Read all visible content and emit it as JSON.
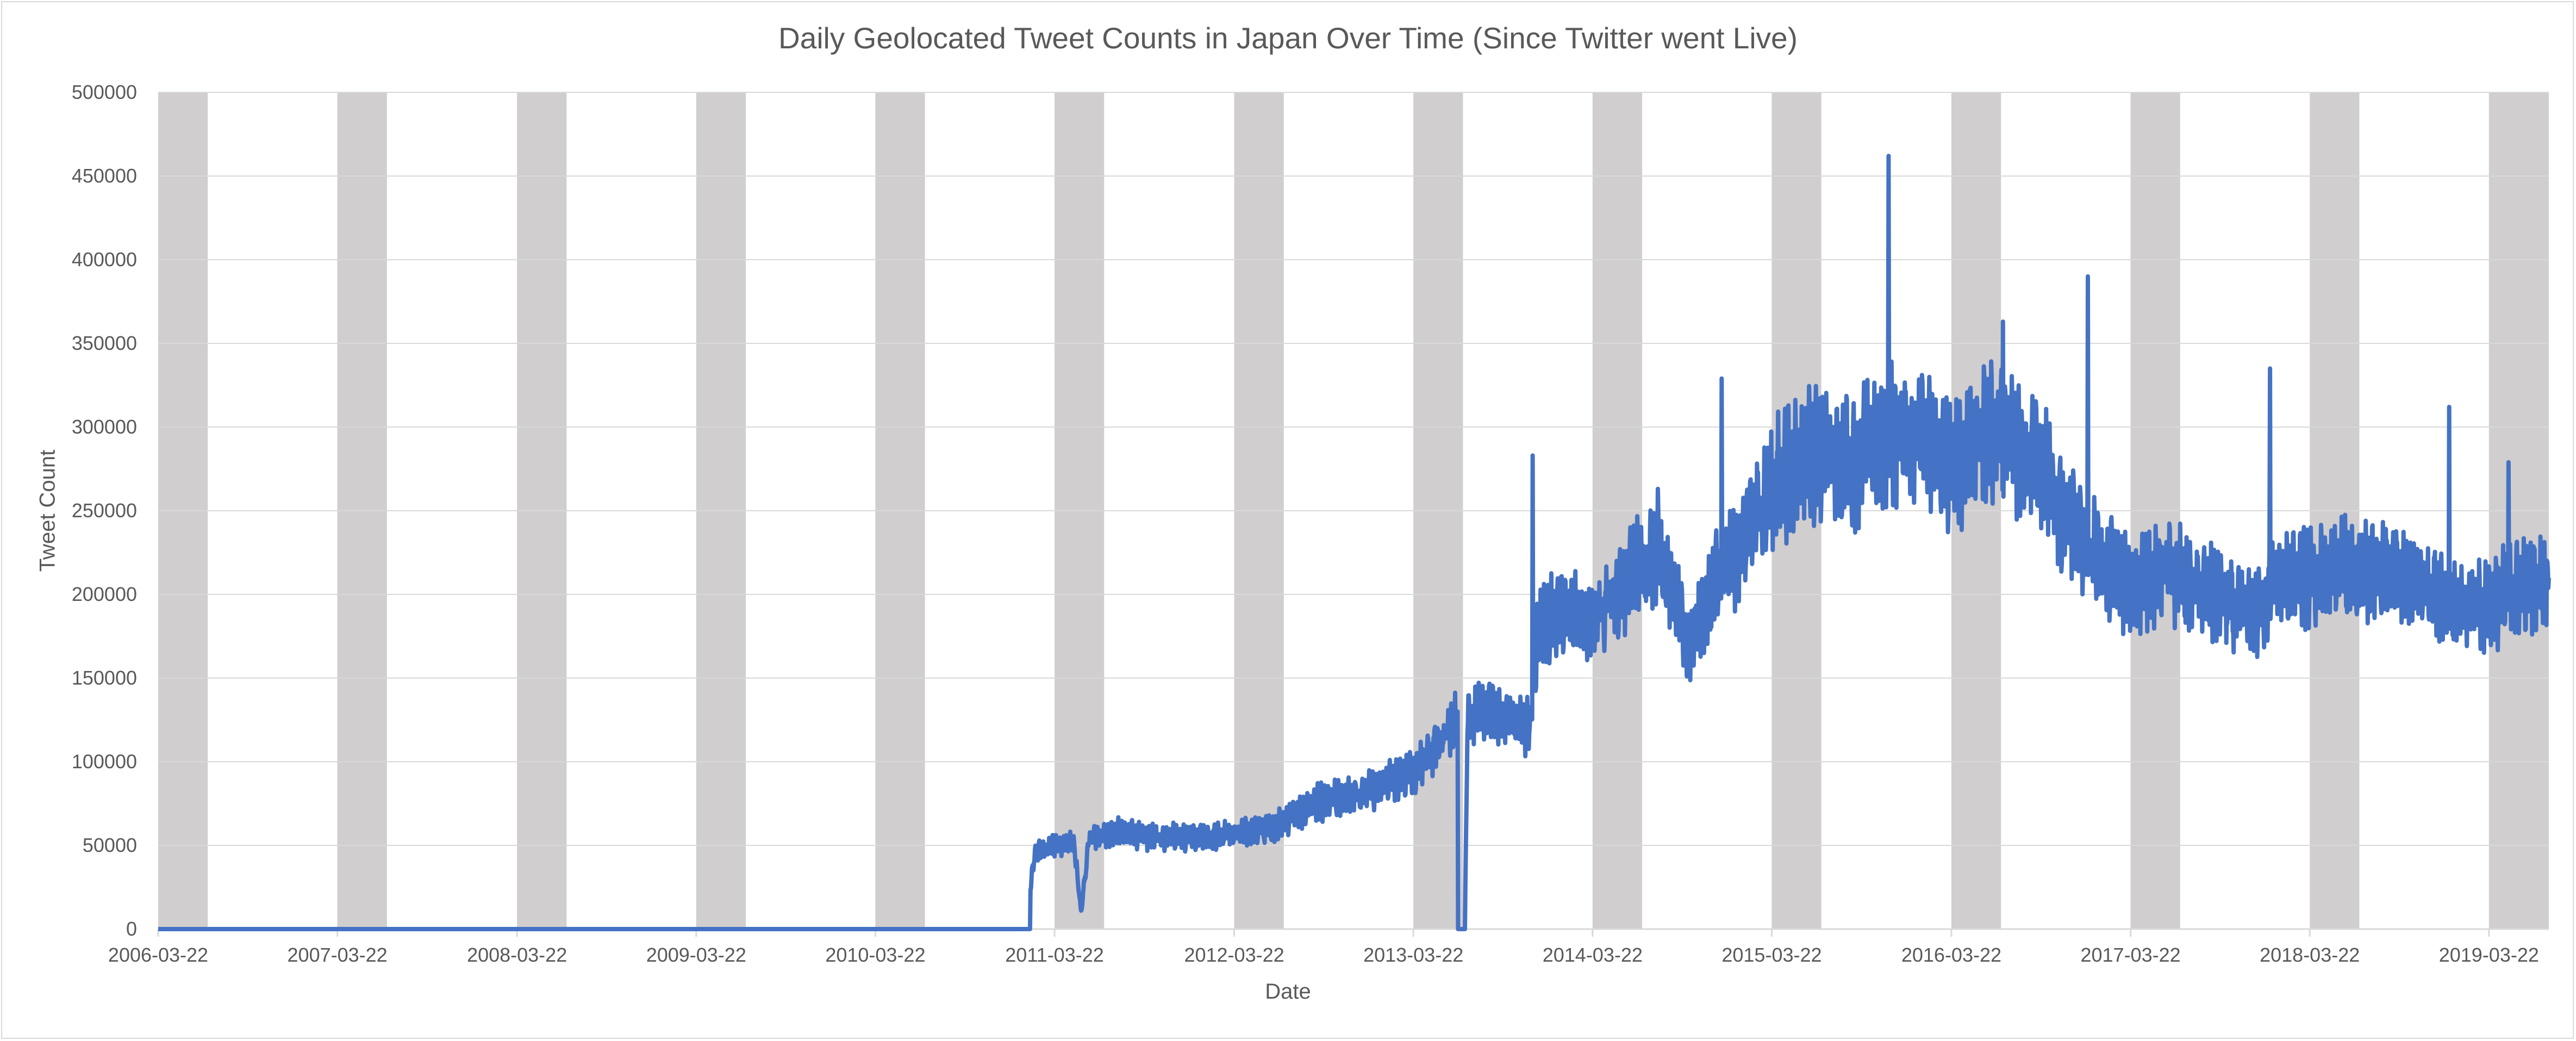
{
  "chart_data": {
    "type": "line",
    "title": "Daily Geolocated Tweet Counts in Japan Over Time (Since Twitter went Live)",
    "xlabel": "Date",
    "ylabel": "Tweet Count",
    "x_type": "date",
    "xlim": [
      "2006-03-22",
      "2019-07-22"
    ],
    "ylim": [
      0,
      500000
    ],
    "grid": "horizontal",
    "legend": "none",
    "x_ticks": [
      "2006-03-22",
      "2007-03-22",
      "2008-03-22",
      "2009-03-22",
      "2010-03-22",
      "2011-03-22",
      "2012-03-22",
      "2013-03-22",
      "2014-03-22",
      "2015-03-22",
      "2016-03-22",
      "2017-03-22",
      "2018-03-22",
      "2019-03-22"
    ],
    "y_ticks": [
      0,
      50000,
      100000,
      150000,
      200000,
      250000,
      300000,
      350000,
      400000,
      450000,
      500000
    ],
    "y_tick_labels": [
      "0",
      "50000",
      "100000",
      "150000",
      "200000",
      "250000",
      "300000",
      "350000",
      "400000",
      "450000",
      "500000"
    ],
    "shaded_bands": [
      [
        "2006-03-22",
        "2006-07-01"
      ],
      [
        "2007-03-22",
        "2007-07-01"
      ],
      [
        "2008-03-22",
        "2008-07-01"
      ],
      [
        "2009-03-22",
        "2009-07-01"
      ],
      [
        "2010-03-22",
        "2010-07-01"
      ],
      [
        "2011-03-22",
        "2011-07-01"
      ],
      [
        "2012-03-22",
        "2012-07-01"
      ],
      [
        "2013-03-22",
        "2013-07-01"
      ],
      [
        "2014-03-22",
        "2014-07-01"
      ],
      [
        "2015-03-22",
        "2015-07-01"
      ],
      [
        "2016-03-22",
        "2016-07-01"
      ],
      [
        "2017-03-22",
        "2017-07-01"
      ],
      [
        "2018-03-22",
        "2018-07-01"
      ],
      [
        "2019-03-22",
        "2019-07-22"
      ]
    ],
    "series": [
      {
        "x": [
          "2006-03-22",
          "2011-01-31",
          "2011-02-01",
          "2011-02-10",
          "2011-03-01",
          "2011-04-01",
          "2011-05-01",
          "2011-05-15",
          "2011-06-01",
          "2011-08-01",
          "2011-10-01",
          "2012-01-01",
          "2012-03-22",
          "2012-06-01",
          "2012-09-01",
          "2012-12-01",
          "2013-03-22",
          "2013-06-01",
          "2013-06-20",
          "2013-06-21",
          "2013-07-05",
          "2013-07-10",
          "2013-09-01",
          "2013-11-15",
          "2013-12-01",
          "2014-01-10",
          "2014-03-22",
          "2014-06-01",
          "2014-08-01",
          "2014-10-01",
          "2014-12-01",
          "2015-01-01",
          "2015-03-22",
          "2015-06-01",
          "2015-09-01",
          "2015-12-20",
          "2016-03-22",
          "2016-06-01",
          "2016-09-01",
          "2016-12-15",
          "2017-03-22",
          "2017-06-01",
          "2017-09-01",
          "2017-12-01",
          "2017-12-31",
          "2018-03-22",
          "2018-06-01",
          "2018-09-01",
          "2018-12-01",
          "2019-01-20",
          "2019-03-22",
          "2019-05-01",
          "2019-07-22"
        ],
        "y": [
          0,
          0,
          25000,
          45000,
          48000,
          52000,
          50000,
          10000,
          55000,
          58000,
          55000,
          55000,
          57000,
          60000,
          75000,
          80000,
          95000,
          118000,
          128000,
          0,
          0,
          130000,
          128000,
          120000,
          180000,
          190000,
          185000,
          210000,
          230000,
          170000,
          210000,
          220000,
          265000,
          285000,
          280000,
          300000,
          275000,
          300000,
          285000,
          230000,
          205000,
          215000,
          200000,
          185000,
          205000,
          210000,
          215000,
          210000,
          205000,
          190000,
          195000,
          200000,
          210000
        ],
        "spikes": [
          {
            "x": "2013-11-20",
            "y": 283000
          },
          {
            "x": "2014-12-10",
            "y": 329000
          },
          {
            "x": "2015-11-15",
            "y": 462000
          },
          {
            "x": "2016-07-05",
            "y": 363000
          },
          {
            "x": "2016-12-25",
            "y": 390000
          },
          {
            "x": "2017-12-31",
            "y": 335000
          },
          {
            "x": "2018-12-31",
            "y": 312000
          },
          {
            "x": "2019-05-01",
            "y": 279000
          }
        ]
      }
    ],
    "colors": {
      "line": "#4472C4",
      "band": "#d0cece",
      "grid": "#d9d9d9",
      "text": "#595959"
    }
  }
}
